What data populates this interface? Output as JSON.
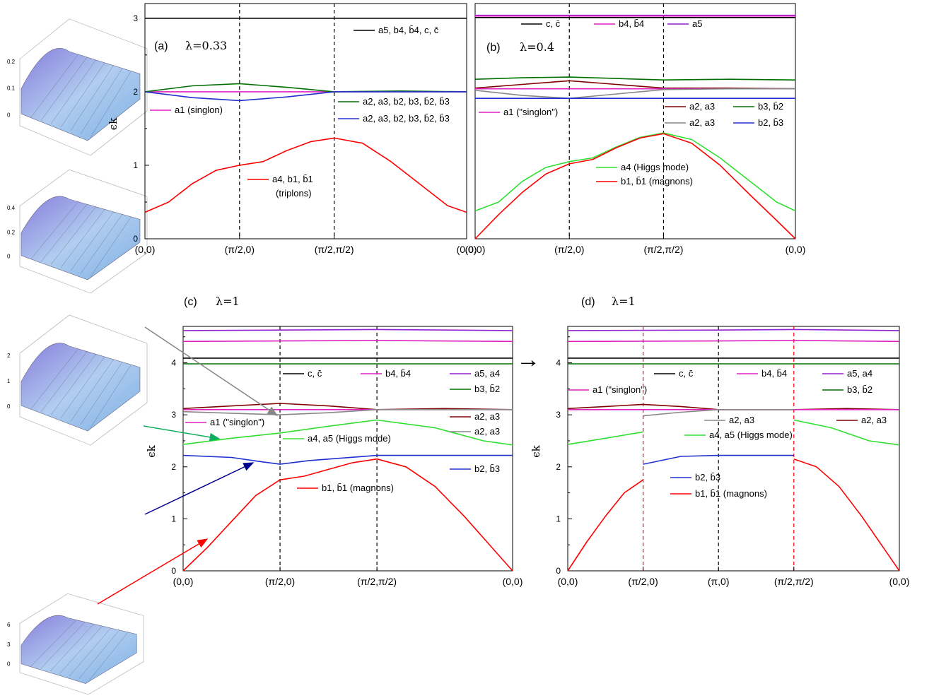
{
  "chart_data": [
    {
      "panel": "a",
      "type": "line",
      "label": "(a)",
      "lambda_label": "λ=0.33",
      "ylabel": "ϵk",
      "x_ticks": [
        "(0,0)",
        "(π/2,0)",
        "(π/2,π/2)",
        "(0,0)"
      ],
      "x_tick_pos": [
        0,
        1,
        2,
        3.4
      ],
      "y_ticks": [
        "0",
        "1",
        "2",
        "3"
      ],
      "ylim": [
        0,
        3.2
      ],
      "vlines": [
        {
          "x": 1,
          "color": "#000000"
        },
        {
          "x": 2,
          "color": "#000000"
        }
      ],
      "series": [
        {
          "color": "#000000",
          "x": [
            0,
            3.4
          ],
          "y": [
            3.0,
            3.0
          ]
        },
        {
          "color": "#e020c0",
          "x": [
            0,
            3.4
          ],
          "y": [
            2.0,
            2.0
          ]
        },
        {
          "color": "#007000",
          "x": [
            0,
            0.5,
            1,
            1.5,
            2,
            2.7,
            3.4
          ],
          "y": [
            2.0,
            2.08,
            2.11,
            2.06,
            2.0,
            2.01,
            2.0
          ]
        },
        {
          "color": "#2030d0",
          "x": [
            0,
            0.5,
            1,
            1.5,
            2,
            3.4
          ],
          "y": [
            2.0,
            1.92,
            1.88,
            1.93,
            2.0,
            2.0
          ]
        },
        {
          "color": "#ff0000",
          "x": [
            0,
            0.25,
            0.5,
            0.75,
            1,
            1.25,
            1.5,
            1.75,
            2,
            2.3,
            2.6,
            2.9,
            3.2,
            3.4
          ],
          "y": [
            0.36,
            0.5,
            0.75,
            0.93,
            1.0,
            1.05,
            1.2,
            1.32,
            1.37,
            1.3,
            1.05,
            0.75,
            0.45,
            0.36
          ]
        }
      ],
      "legend": [
        {
          "color": "#000000",
          "text": "a5, b4, b̄4, c, c̄"
        },
        {
          "color": "#e020c0",
          "text": "a1 (singlon)"
        },
        {
          "color": "#007000",
          "text": "a2, a3, b2, b3, b̄2, b̄3"
        },
        {
          "color": "#2030d0",
          "text": "a2, a3, b2, b3, b̄2, b̄3"
        },
        {
          "color": "#ff0000",
          "text": "a4, b1, b̄1",
          "text2": "(triplons)"
        }
      ]
    },
    {
      "panel": "b",
      "type": "line",
      "label": "(b)",
      "lambda_label": "λ=0.4",
      "x_ticks": [
        "(0,0)",
        "(π/2,0)",
        "(π/2,π/2)",
        "(0,0)"
      ],
      "x_tick_pos": [
        0,
        1,
        2,
        3.4
      ],
      "y_ticks": [],
      "ylim": [
        0,
        3.2
      ],
      "vlines": [
        {
          "x": 1,
          "color": "#000000"
        },
        {
          "x": 2,
          "color": "#000000"
        }
      ],
      "series": [
        {
          "color": "#9020d0",
          "x": [
            0,
            3.4
          ],
          "y": [
            3.04,
            3.04
          ]
        },
        {
          "color": "#e020c0",
          "x": [
            0,
            3.4
          ],
          "y": [
            3.03,
            3.03
          ]
        },
        {
          "color": "#000000",
          "x": [
            0,
            3.4
          ],
          "y": [
            3.01,
            3.01
          ]
        },
        {
          "color": "#007000",
          "x": [
            0,
            0.5,
            1,
            1.5,
            2,
            2.7,
            3.4
          ],
          "y": [
            2.17,
            2.19,
            2.2,
            2.18,
            2.16,
            2.17,
            2.16
          ]
        },
        {
          "color": "#800000",
          "x": [
            0,
            0.5,
            1,
            1.5,
            2,
            2.7,
            3.4
          ],
          "y": [
            2.05,
            2.1,
            2.15,
            2.1,
            2.05,
            2.05,
            2.04
          ]
        },
        {
          "color": "#e020c0",
          "x": [
            0,
            3.4
          ],
          "y": [
            2.04,
            2.04
          ]
        },
        {
          "color": "#888888",
          "x": [
            0,
            0.5,
            1,
            1.5,
            2,
            2.7,
            3.4
          ],
          "y": [
            2.02,
            1.95,
            1.91,
            1.97,
            2.03,
            2.04,
            2.04
          ]
        },
        {
          "color": "#2030d0",
          "x": [
            0,
            3.4
          ],
          "y": [
            1.91,
            1.91
          ]
        },
        {
          "color": "#30e030",
          "x": [
            0,
            0.25,
            0.5,
            0.75,
            1,
            1.25,
            1.5,
            1.75,
            2,
            2.3,
            2.6,
            2.9,
            3.2,
            3.4
          ],
          "y": [
            0.38,
            0.5,
            0.78,
            0.97,
            1.05,
            1.1,
            1.25,
            1.38,
            1.44,
            1.35,
            1.1,
            0.8,
            0.5,
            0.38
          ]
        },
        {
          "color": "#ff0000",
          "x": [
            0,
            0.25,
            0.5,
            0.75,
            1,
            1.25,
            1.5,
            1.75,
            2,
            2.3,
            2.6,
            2.9,
            3.2,
            3.4
          ],
          "y": [
            0.0,
            0.33,
            0.63,
            0.88,
            1.02,
            1.08,
            1.24,
            1.37,
            1.43,
            1.3,
            1.0,
            0.62,
            0.25,
            0.0
          ]
        }
      ],
      "legend": [
        {
          "color": "#000000",
          "text": "c, c̄"
        },
        {
          "color": "#e020c0",
          "text": "b4, b̄4"
        },
        {
          "color": "#9020d0",
          "text": "a5"
        },
        {
          "color": "#e020c0",
          "text": "a1 (\"singlon\")"
        },
        {
          "color": "#800000",
          "text": "a2, a3"
        },
        {
          "color": "#007000",
          "text": "b3, b̄2"
        },
        {
          "color": "#888888",
          "text": "a2, a3"
        },
        {
          "color": "#2030d0",
          "text": "b2, b̄3"
        },
        {
          "color": "#30e030",
          "text": "a4 (Higgs mode)"
        },
        {
          "color": "#ff0000",
          "text": "b1, b̄1 (magnons)"
        }
      ]
    },
    {
      "panel": "c",
      "type": "line",
      "label": "(c)",
      "lambda_label": "λ=1",
      "ylabel": "ϵk",
      "x_ticks": [
        "(0,0)",
        "(π/2,0)",
        "(π/2,π/2)",
        "(0,0)"
      ],
      "x_tick_pos": [
        0,
        1,
        2,
        3.4
      ],
      "y_ticks": [
        "0",
        "1",
        "2",
        "3",
        "4"
      ],
      "ylim": [
        0,
        4.7
      ],
      "vlines": [
        {
          "x": 1,
          "color": "#000000"
        },
        {
          "x": 2,
          "color": "#000000"
        }
      ],
      "series": [
        {
          "color": "#9020d0",
          "x": [
            0,
            1,
            2,
            3.4
          ],
          "y": [
            4.62,
            4.63,
            4.64,
            4.62
          ]
        },
        {
          "color": "#e020c0",
          "x": [
            0,
            1,
            2,
            3.4
          ],
          "y": [
            4.41,
            4.42,
            4.43,
            4.41
          ]
        },
        {
          "color": "#000000",
          "x": [
            0,
            3.4
          ],
          "y": [
            4.09,
            4.09
          ]
        },
        {
          "color": "#007000",
          "x": [
            0,
            3.4
          ],
          "y": [
            3.98,
            3.98
          ]
        },
        {
          "color": "#800000",
          "x": [
            0,
            0.5,
            1,
            1.5,
            2,
            2.7,
            3.4
          ],
          "y": [
            3.12,
            3.17,
            3.22,
            3.17,
            3.1,
            3.12,
            3.1
          ]
        },
        {
          "color": "#e020c0",
          "x": [
            0,
            3.4
          ],
          "y": [
            3.1,
            3.1
          ]
        },
        {
          "color": "#888888",
          "x": [
            0,
            0.5,
            1,
            1.5,
            2,
            3.4
          ],
          "y": [
            3.06,
            3.03,
            3.0,
            3.04,
            3.1,
            3.1
          ]
        },
        {
          "color": "#30e030",
          "x": [
            0,
            0.5,
            1,
            1.5,
            2,
            2.6,
            3.1,
            3.4
          ],
          "y": [
            2.43,
            2.55,
            2.65,
            2.78,
            2.9,
            2.75,
            2.5,
            2.42
          ]
        },
        {
          "color": "#2030d0",
          "x": [
            0,
            0.5,
            0.8,
            1,
            1.3,
            2,
            3.4
          ],
          "y": [
            2.22,
            2.18,
            2.1,
            2.05,
            2.12,
            2.22,
            2.22
          ]
        },
        {
          "color": "#ff0000",
          "x": [
            0,
            0.25,
            0.5,
            0.75,
            1,
            1.25,
            1.5,
            1.75,
            2,
            2.3,
            2.6,
            2.9,
            3.2,
            3.4
          ],
          "y": [
            0.0,
            0.45,
            0.95,
            1.45,
            1.75,
            1.82,
            1.95,
            2.08,
            2.15,
            2.0,
            1.62,
            1.05,
            0.42,
            0.0
          ]
        }
      ],
      "legend": [
        {
          "color": "#000000",
          "text": "c, c̄"
        },
        {
          "color": "#e020c0",
          "text": "b4, b̄4"
        },
        {
          "color": "#9020d0",
          "text": "a5, a4"
        },
        {
          "color": "#007000",
          "text": "b3, b̄2"
        },
        {
          "color": "#800000",
          "text": "a2, a3"
        },
        {
          "color": "#e020c0",
          "text": "a1 (\"singlon\")"
        },
        {
          "color": "#888888",
          "text": "a2, a3"
        },
        {
          "color": "#30e030",
          "text": "a4, a5 (Higgs mode)"
        },
        {
          "color": "#2030d0",
          "text": "b2, b̄3"
        },
        {
          "color": "#ff0000",
          "text": "b1, b̄1 (magnons)"
        }
      ]
    },
    {
      "panel": "d",
      "type": "line",
      "label": "(d)",
      "lambda_label": "λ=1",
      "ylabel": "ϵk",
      "x_ticks": [
        "(0,0)",
        "(π/2,0)",
        "(π,0)",
        "(π/2,π/2)",
        "(0,0)"
      ],
      "x_tick_pos": [
        0,
        1,
        2,
        3,
        4.4
      ],
      "y_ticks": [
        "0",
        "1",
        "2",
        "3",
        "4"
      ],
      "ylim": [
        0,
        4.7
      ],
      "vlines": [
        {
          "x": 1,
          "color": "#ff0000"
        },
        {
          "x": 2,
          "color": "#000000"
        },
        {
          "x": 3,
          "color": "#ff0000"
        }
      ],
      "series": [
        {
          "color": "#9020d0",
          "x": [
            0,
            2,
            3,
            4.4
          ],
          "y": [
            4.62,
            4.63,
            4.64,
            4.62
          ]
        },
        {
          "color": "#e020c0",
          "x": [
            0,
            2,
            3,
            4.4
          ],
          "y": [
            4.41,
            4.42,
            4.43,
            4.41
          ]
        },
        {
          "color": "#000000",
          "x": [
            0,
            4.4
          ],
          "y": [
            4.09,
            4.09
          ]
        },
        {
          "color": "#007000",
          "x": [
            0,
            4.4
          ],
          "y": [
            3.98,
            3.98
          ]
        },
        {
          "color": "#800000",
          "x": [
            0,
            0.5,
            1,
            1.5,
            2,
            2.5,
            3,
            3.7,
            4.4
          ],
          "y": [
            3.12,
            3.16,
            3.2,
            3.16,
            3.1,
            3.1,
            3.1,
            3.12,
            3.1
          ]
        },
        {
          "color": "#e020c0",
          "x": [
            0,
            4.4
          ],
          "y": [
            3.1,
            3.1
          ]
        },
        {
          "color": "#888888",
          "x": [
            1,
            1.5,
            2,
            2.5,
            3
          ],
          "y": [
            2.98,
            3.05,
            3.1,
            3.1,
            3.1
          ]
        },
        {
          "color": "#30e030",
          "x": [
            0,
            0.5,
            1
          ],
          "y": [
            2.43,
            2.55,
            2.67
          ]
        },
        {
          "color": "#30e030",
          "x": [
            3,
            3.5,
            4,
            4.4
          ],
          "y": [
            2.9,
            2.75,
            2.5,
            2.42
          ]
        },
        {
          "color": "#2030d0",
          "x": [
            1,
            1.5,
            2,
            2.5,
            3
          ],
          "y": [
            2.05,
            2.2,
            2.22,
            2.22,
            2.22
          ]
        },
        {
          "color": "#ff0000",
          "x": [
            0,
            0.25,
            0.5,
            0.75,
            1
          ],
          "y": [
            0.0,
            0.55,
            1.05,
            1.5,
            1.75
          ]
        },
        {
          "color": "#ff0000",
          "x": [
            3,
            3.3,
            3.6,
            3.9,
            4.2,
            4.4
          ],
          "y": [
            2.15,
            2.0,
            1.62,
            1.05,
            0.42,
            0.0
          ]
        }
      ],
      "legend": [
        {
          "color": "#000000",
          "text": "c, c̄"
        },
        {
          "color": "#e020c0",
          "text": "b4, b̄4"
        },
        {
          "color": "#9020d0",
          "text": "a5, a4"
        },
        {
          "color": "#e020c0",
          "text": "a1 (\"singlon\")"
        },
        {
          "color": "#007000",
          "text": "b3, b̄2"
        },
        {
          "color": "#888888",
          "text": "a2, a3"
        },
        {
          "color": "#800000",
          "text": "a2, a3"
        },
        {
          "color": "#30e030",
          "text": "a4, a5 (Higgs mode)"
        },
        {
          "color": "#2030d0",
          "text": "b2, b̄3"
        },
        {
          "color": "#ff0000",
          "text": "b1, b̄1 (magnons)"
        }
      ]
    }
  ],
  "insets": [
    {
      "name": "inset-1",
      "z_ticks": [
        "0.2",
        "0.1",
        "0"
      ],
      "arrow_color": "#888888"
    },
    {
      "name": "inset-2",
      "z_ticks": [
        "0.4",
        "0.2",
        "0"
      ],
      "arrow_color": "#10b060"
    },
    {
      "name": "inset-3",
      "z_ticks": [
        "2",
        "1",
        "0"
      ],
      "arrow_color": "#000090"
    },
    {
      "name": "inset-4",
      "z_ticks": [
        "6",
        "3",
        "0"
      ],
      "arrow_color": "#ff0000"
    }
  ],
  "arrow_between": "→"
}
